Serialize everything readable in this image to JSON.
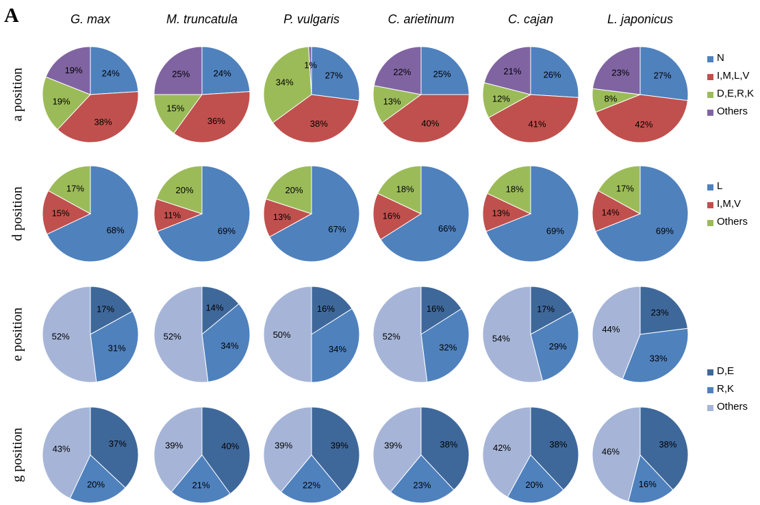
{
  "panel_letter": "A",
  "species": [
    "G. max",
    "M. truncatula",
    "P. vulgaris",
    "C. arietinum",
    "C. cajan",
    "L. japonicus"
  ],
  "rows": [
    "a position",
    "d position",
    "e position",
    "g position"
  ],
  "legends": [
    {
      "items": [
        {
          "label": "N",
          "color": "#4F81BD"
        },
        {
          "label": "I,M,L,V",
          "color": "#C0504D"
        },
        {
          "label": "D,E,R,K",
          "color": "#9BBB59"
        },
        {
          "label": "Others",
          "color": "#8064A2"
        }
      ]
    },
    {
      "items": [
        {
          "label": "L",
          "color": "#4F81BD"
        },
        {
          "label": "I,M,V",
          "color": "#C0504D"
        },
        {
          "label": "Others",
          "color": "#9BBB59"
        }
      ]
    },
    {
      "items": [
        {
          "label": "D,E",
          "color": "#3F689A"
        },
        {
          "label": "R,K",
          "color": "#4F81BD"
        },
        {
          "label": "Others",
          "color": "#A6B5D7"
        }
      ]
    }
  ],
  "chart_data": [
    {
      "type": "pie",
      "row": "a position",
      "colors": [
        "#4F81BD",
        "#C0504D",
        "#9BBB59",
        "#8064A2"
      ],
      "categories": [
        "N",
        "I,M,L,V",
        "D,E,R,K",
        "Others"
      ],
      "series": [
        {
          "name": "G. max",
          "values": [
            24,
            38,
            19,
            19
          ]
        },
        {
          "name": "M. truncatula",
          "values": [
            24,
            36,
            15,
            25
          ]
        },
        {
          "name": "P. vulgaris",
          "values": [
            27,
            38,
            34,
            1
          ]
        },
        {
          "name": "C. arietinum",
          "values": [
            25,
            40,
            13,
            22
          ]
        },
        {
          "name": "C. cajan",
          "values": [
            26,
            41,
            12,
            21
          ]
        },
        {
          "name": "L. japonicus",
          "values": [
            27,
            42,
            8,
            23
          ]
        }
      ]
    },
    {
      "type": "pie",
      "row": "d position",
      "colors": [
        "#4F81BD",
        "#C0504D",
        "#9BBB59"
      ],
      "categories": [
        "L",
        "I,M,V",
        "Others"
      ],
      "series": [
        {
          "name": "G. max",
          "values": [
            68,
            15,
            17
          ]
        },
        {
          "name": "M. truncatula",
          "values": [
            69,
            11,
            20
          ]
        },
        {
          "name": "P. vulgaris",
          "values": [
            67,
            13,
            20
          ]
        },
        {
          "name": "C. arietinum",
          "values": [
            66,
            16,
            18
          ]
        },
        {
          "name": "C. cajan",
          "values": [
            69,
            13,
            18
          ]
        },
        {
          "name": "L. japonicus",
          "values": [
            69,
            14,
            17
          ]
        }
      ]
    },
    {
      "type": "pie",
      "row": "e position",
      "colors": [
        "#3F689A",
        "#4F81BD",
        "#A6B5D7"
      ],
      "categories": [
        "D,E",
        "R,K",
        "Others"
      ],
      "series": [
        {
          "name": "G. max",
          "values": [
            17,
            31,
            52
          ]
        },
        {
          "name": "M. truncatula",
          "values": [
            14,
            34,
            52
          ]
        },
        {
          "name": "P. vulgaris",
          "values": [
            16,
            34,
            50
          ]
        },
        {
          "name": "C. arietinum",
          "values": [
            16,
            32,
            52
          ]
        },
        {
          "name": "C. cajan",
          "values": [
            17,
            29,
            54
          ]
        },
        {
          "name": "L. japonicus",
          "values": [
            23,
            33,
            44
          ]
        }
      ]
    },
    {
      "type": "pie",
      "row": "g position",
      "colors": [
        "#3F689A",
        "#4F81BD",
        "#A6B5D7"
      ],
      "categories": [
        "D,E",
        "R,K",
        "Others"
      ],
      "series": [
        {
          "name": "G. max",
          "values": [
            37,
            20,
            43
          ]
        },
        {
          "name": "M. truncatula",
          "values": [
            40,
            21,
            39
          ]
        },
        {
          "name": "P. vulgaris",
          "values": [
            39,
            22,
            39
          ]
        },
        {
          "name": "C. arietinum",
          "values": [
            38,
            23,
            39
          ]
        },
        {
          "name": "C. cajan",
          "values": [
            38,
            20,
            42
          ]
        },
        {
          "name": "L. japonicus",
          "values": [
            38,
            16,
            46
          ]
        }
      ]
    }
  ]
}
